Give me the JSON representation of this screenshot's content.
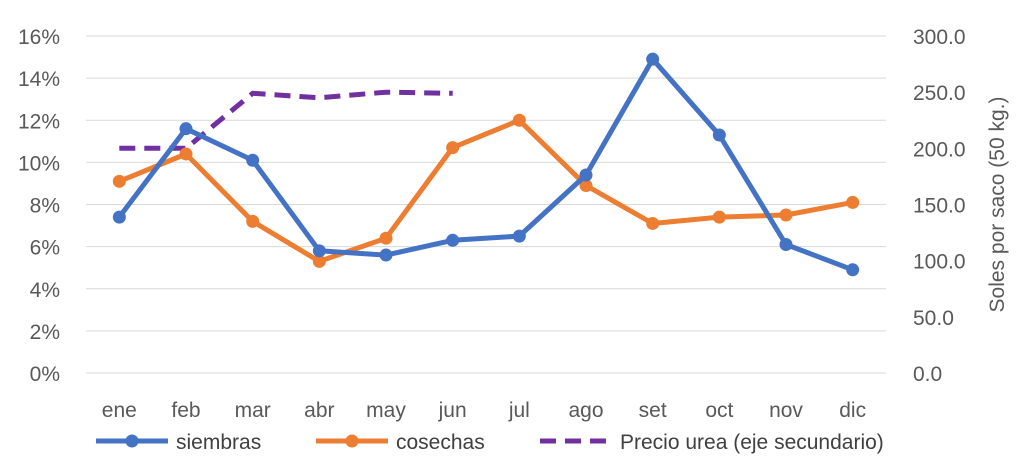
{
  "chart_data": {
    "type": "line",
    "categories": [
      "ene",
      "feb",
      "mar",
      "abr",
      "may",
      "jun",
      "jul",
      "ago",
      "set",
      "oct",
      "nov",
      "dic"
    ],
    "series": [
      {
        "name": "siembras",
        "axis": "primary",
        "color": "#4472C4",
        "style": "solid",
        "markers": true,
        "values": [
          0.074,
          0.116,
          0.101,
          0.058,
          0.056,
          0.063,
          0.065,
          0.094,
          0.149,
          0.113,
          0.061,
          0.049
        ]
      },
      {
        "name": "cosechas",
        "axis": "primary",
        "color": "#ED7D31",
        "style": "solid",
        "markers": true,
        "values": [
          0.091,
          0.104,
          0.072,
          0.053,
          0.064,
          0.107,
          0.12,
          0.089,
          0.071,
          0.074,
          0.075,
          0.081
        ]
      },
      {
        "name": "Precio urea (eje secundario)",
        "axis": "secondary",
        "color": "#7030A0",
        "style": "dashed",
        "markers": false,
        "values": [
          200,
          200,
          249,
          245,
          250,
          249,
          null,
          null,
          null,
          null,
          null,
          null
        ]
      }
    ],
    "y_primary": {
      "min": 0,
      "max": 0.16,
      "ticks": [
        0,
        0.02,
        0.04,
        0.06,
        0.08,
        0.1,
        0.12,
        0.14,
        0.16
      ],
      "tick_labels": [
        "0%",
        "2%",
        "4%",
        "6%",
        "8%",
        "10%",
        "12%",
        "14%",
        "16%"
      ]
    },
    "y_secondary": {
      "min": 0,
      "max": 300,
      "ticks": [
        0,
        50,
        100,
        150,
        200,
        250,
        300
      ],
      "tick_labels": [
        "0.0",
        "50.0",
        "100.0",
        "150.0",
        "200.0",
        "250.0",
        "300.0"
      ],
      "label": "Soles por saco (50 kg.)"
    },
    "title": "",
    "xlabel": "",
    "grid": true,
    "legend_position": "bottom"
  }
}
